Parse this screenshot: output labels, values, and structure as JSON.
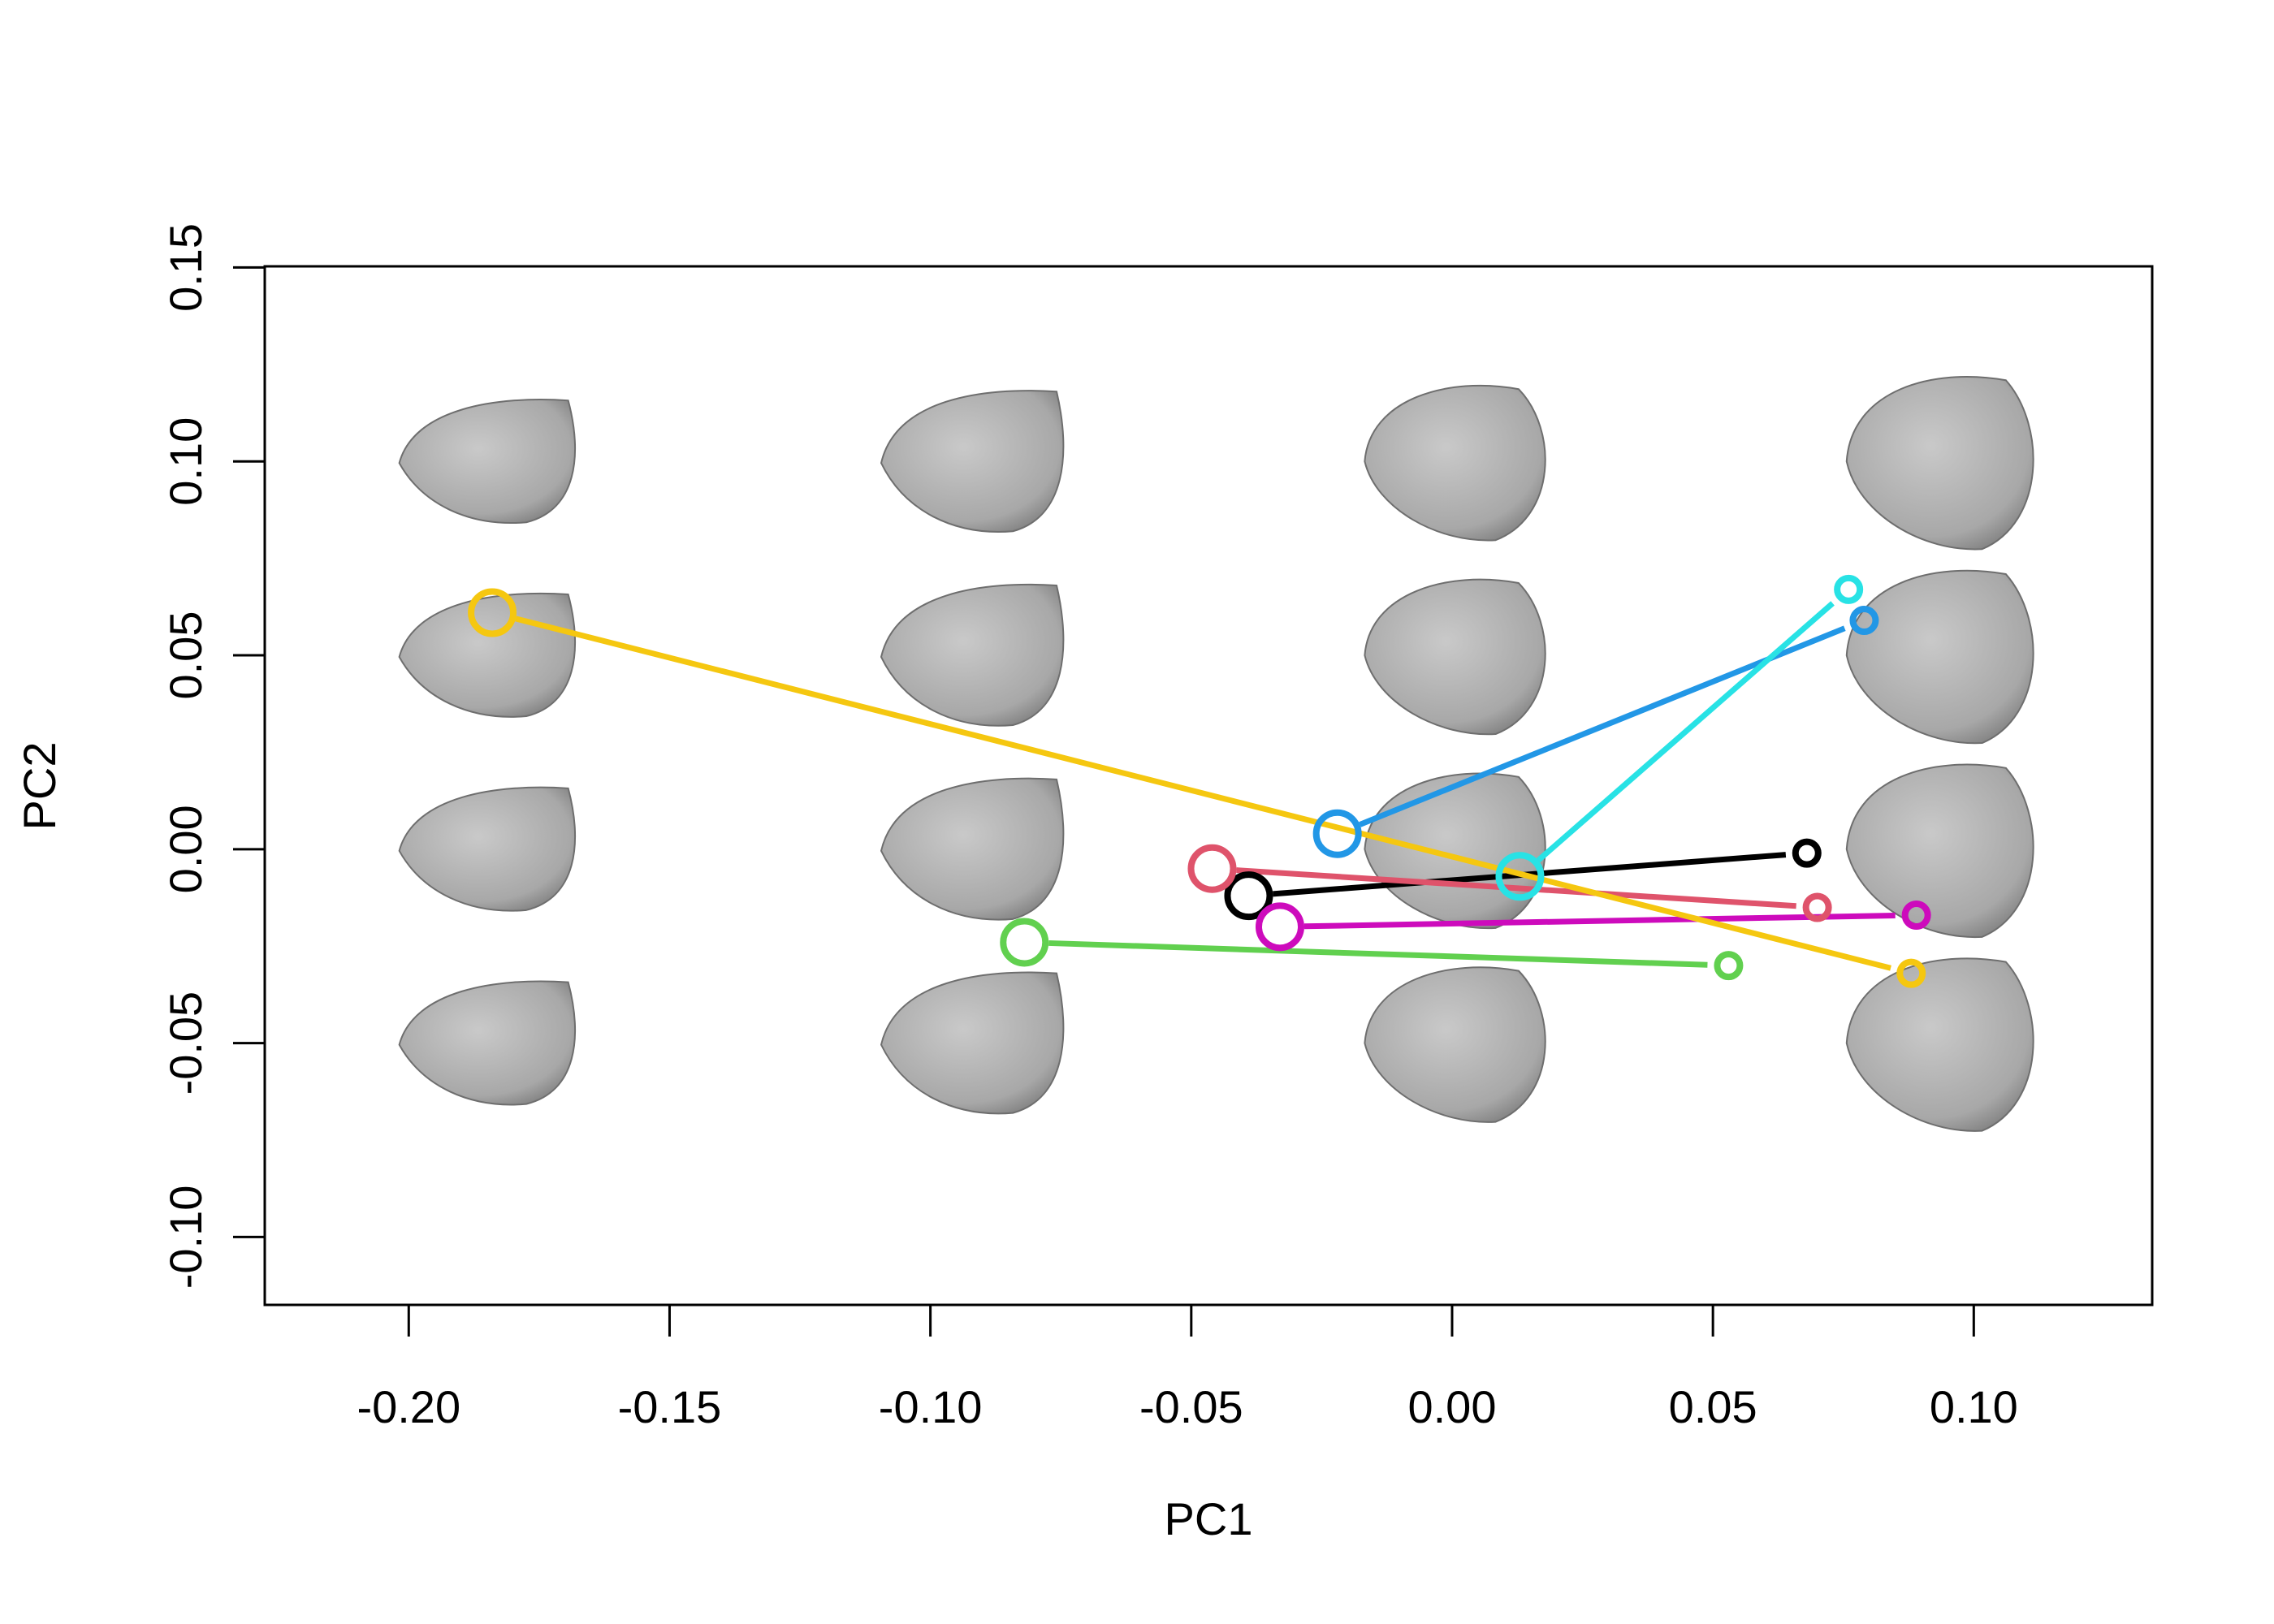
{
  "chart_data": {
    "type": "scatter",
    "title": "",
    "xlabel": "PC1",
    "ylabel": "PC2",
    "xlim": [
      -0.2276,
      0.1342
    ],
    "ylim": [
      -0.1175,
      0.1503
    ],
    "grid": false,
    "legend": "none",
    "x_ticks": [
      -0.2,
      -0.15,
      -0.1,
      -0.05,
      0.0,
      0.05,
      0.1
    ],
    "x_tick_labels": [
      "-0.20",
      "-0.15",
      "-0.10",
      "-0.05",
      "0.00",
      "0.05",
      "0.10"
    ],
    "y_ticks": [
      -0.1,
      -0.05,
      0.0,
      0.05,
      0.1,
      0.15
    ],
    "y_tick_labels": [
      "-0.10",
      "-0.05",
      "0.00",
      "0.05",
      "0.10",
      "0.15"
    ],
    "background_shapes": {
      "description_type": "shape-grid",
      "color": "#a9a9a9",
      "x": [
        -0.185,
        -0.092,
        0.001,
        0.094
      ],
      "y": [
        0.1,
        0.05,
        0.0,
        -0.05
      ]
    },
    "series": [
      {
        "color": "#000000",
        "start": [
          -0.039,
          -0.012
        ],
        "end": [
          0.068,
          -0.001
        ]
      },
      {
        "color": "#df536b",
        "start": [
          -0.046,
          -0.005
        ],
        "end": [
          0.07,
          -0.015
        ]
      },
      {
        "color": "#61d04f",
        "start": [
          -0.082,
          -0.024
        ],
        "end": [
          0.053,
          -0.03
        ]
      },
      {
        "color": "#2297e6",
        "start": [
          -0.022,
          0.004
        ],
        "end": [
          0.079,
          0.059
        ]
      },
      {
        "color": "#28e2e5",
        "start": [
          0.013,
          -0.007
        ],
        "end": [
          0.076,
          0.067
        ]
      },
      {
        "color": "#cd0bbc",
        "start": [
          -0.033,
          -0.02
        ],
        "end": [
          0.089,
          -0.017
        ]
      },
      {
        "color": "#f5c710",
        "start": [
          -0.184,
          0.061
        ],
        "end": [
          0.088,
          -0.032
        ]
      }
    ]
  }
}
